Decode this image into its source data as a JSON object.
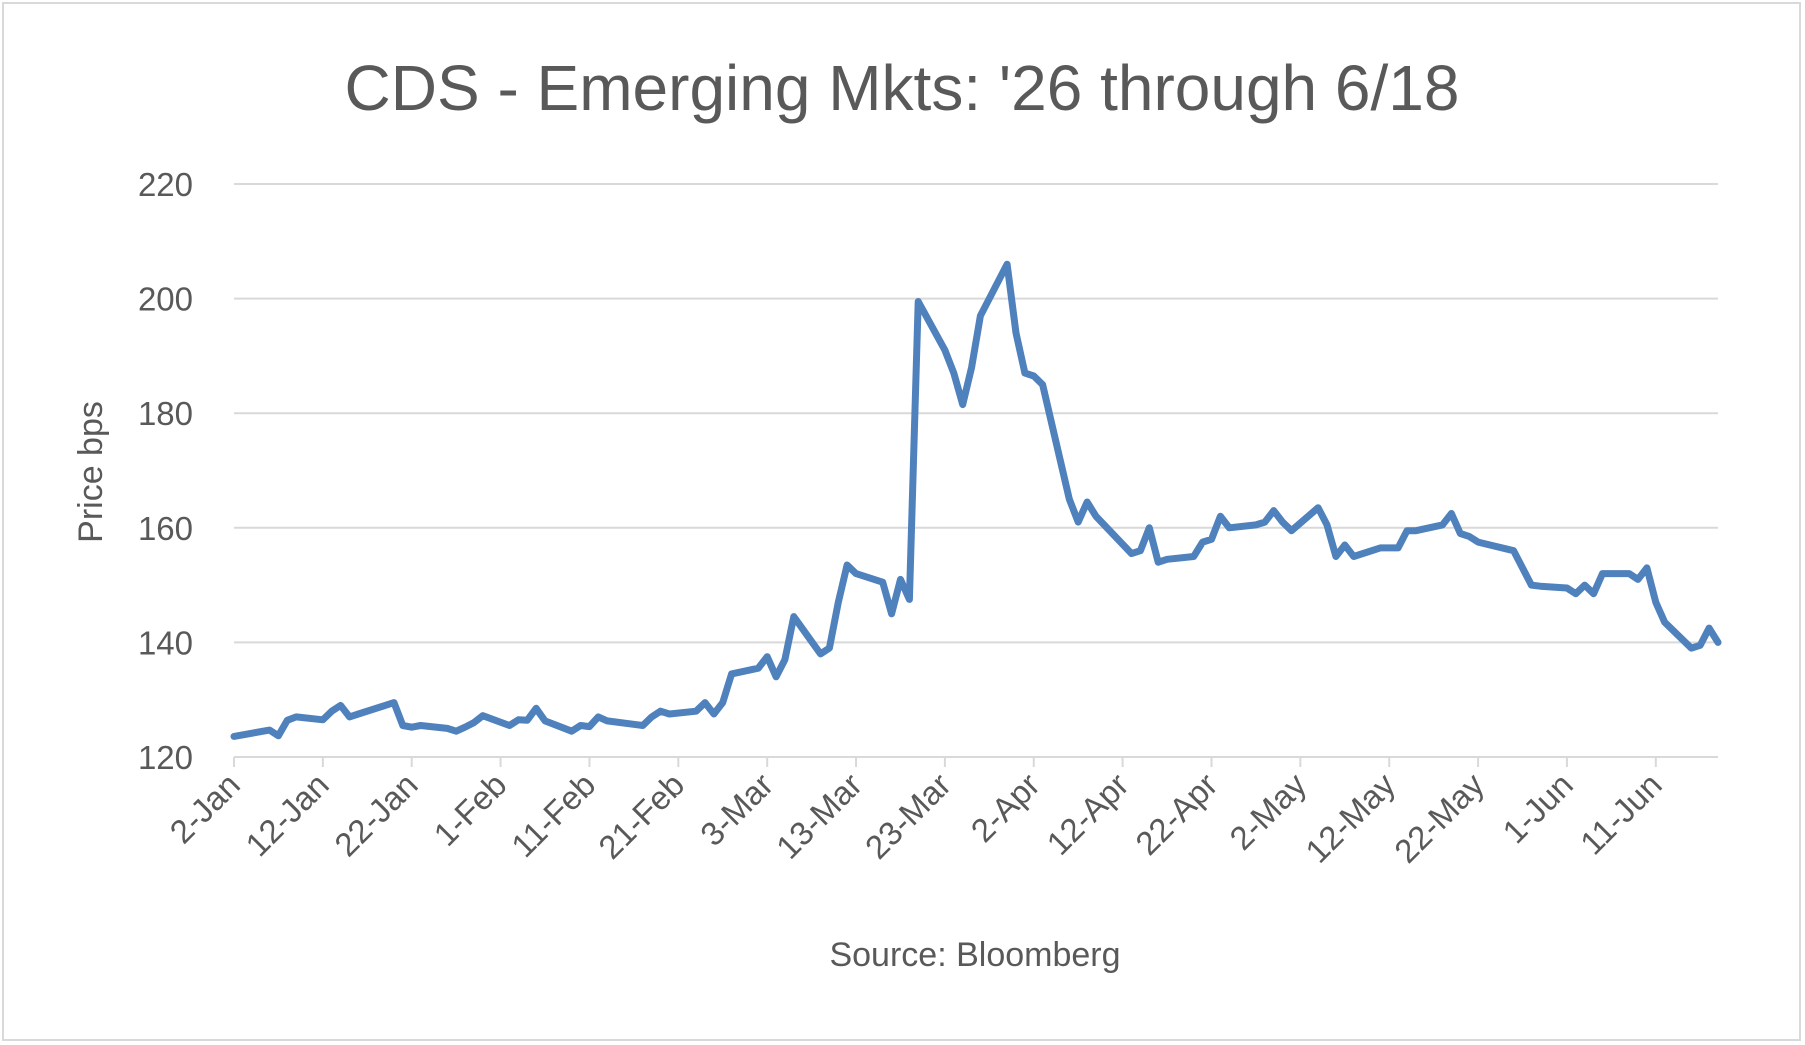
{
  "chart_data": {
    "type": "line",
    "title": "CDS - Emerging Mkts: '26 through 6/18",
    "xlabel": "Source: Bloomberg",
    "ylabel": "Price bps",
    "ylim": [
      120,
      220
    ],
    "yticks": [
      "120",
      "140",
      "160",
      "180",
      "200",
      "220"
    ],
    "xlim": [
      "2-Jan",
      "18-Jun"
    ],
    "xticks": [
      "2-Jan",
      "12-Jan",
      "22-Jan",
      "1-Feb",
      "11-Feb",
      "21-Feb",
      "3-Mar",
      "13-Mar",
      "23-Mar",
      "2-Apr",
      "12-Apr",
      "22-Apr",
      "2-May",
      "12-May",
      "22-May",
      "1-Jun",
      "11-Jun"
    ],
    "grid": true,
    "legend": "none",
    "colors": {
      "series": "#4f81bd",
      "grid": "#d9d9d9",
      "text": "#595959"
    },
    "series": [
      {
        "x": [
          "2-Jan",
          "6-Jan",
          "7-Jan",
          "8-Jan",
          "9-Jan",
          "12-Jan",
          "13-Jan",
          "14-Jan",
          "15-Jan",
          "16-Jan",
          "20-Jan",
          "21-Jan",
          "22-Jan",
          "23-Jan",
          "26-Jan",
          "27-Jan",
          "28-Jan",
          "29-Jan",
          "30-Jan",
          "2-Feb",
          "3-Feb",
          "4-Feb",
          "5-Feb",
          "6-Feb",
          "9-Feb",
          "10-Feb",
          "11-Feb",
          "12-Feb",
          "13-Feb",
          "17-Feb",
          "18-Feb",
          "19-Feb",
          "20-Feb",
          "23-Feb",
          "24-Feb",
          "25-Feb",
          "26-Feb",
          "27-Feb",
          "2-Mar",
          "3-Mar",
          "4-Mar",
          "5-Mar",
          "6-Mar",
          "9-Mar",
          "10-Mar",
          "11-Mar",
          "12-Mar",
          "13-Mar",
          "16-Mar",
          "17-Mar",
          "18-Mar",
          "19-Mar",
          "20-Mar",
          "23-Mar",
          "24-Mar",
          "25-Mar",
          "26-Mar",
          "27-Mar",
          "30-Mar",
          "31-Mar",
          "1-Apr",
          "2-Apr",
          "3-Apr",
          "6-Apr",
          "7-Apr",
          "8-Apr",
          "9-Apr",
          "13-Apr",
          "14-Apr",
          "15-Apr",
          "16-Apr",
          "17-Apr",
          "20-Apr",
          "21-Apr",
          "22-Apr",
          "23-Apr",
          "24-Apr",
          "27-Apr",
          "28-Apr",
          "29-Apr",
          "30-Apr",
          "1-May",
          "4-May",
          "5-May",
          "6-May",
          "7-May",
          "8-May",
          "11-May",
          "12-May",
          "13-May",
          "14-May",
          "15-May",
          "18-May",
          "19-May",
          "20-May",
          "21-May",
          "22-May",
          "26-May",
          "27-May",
          "28-May",
          "29-May",
          "1-Jun",
          "2-Jun",
          "3-Jun",
          "4-Jun",
          "5-Jun",
          "8-Jun",
          "9-Jun",
          "10-Jun",
          "11-Jun",
          "12-Jun",
          "15-Jun",
          "16-Jun",
          "17-Jun",
          "18-Jun"
        ],
        "y": [
          123.6,
          124.7,
          123.7,
          126.4,
          127.0,
          126.5,
          128.0,
          129.0,
          127.0,
          127.5,
          129.5,
          125.5,
          125.2,
          125.5,
          125.0,
          124.5,
          125.2,
          126.0,
          127.2,
          125.5,
          126.5,
          126.4,
          128.5,
          126.3,
          124.5,
          125.5,
          125.3,
          127.0,
          126.3,
          125.5,
          127.0,
          128.0,
          127.5,
          128.0,
          129.5,
          127.5,
          129.5,
          134.5,
          135.5,
          137.5,
          134.0,
          137.0,
          144.5,
          138.0,
          139.0,
          147.0,
          153.5,
          152.0,
          150.5,
          145.0,
          151.0,
          147.5,
          199.5,
          191.0,
          187.0,
          181.5,
          188.0,
          197.0,
          206.0,
          194.0,
          187.0,
          186.5,
          185.0,
          165.0,
          161.0,
          164.5,
          162.0,
          155.5,
          156.0,
          160.0,
          154.0,
          154.5,
          155.0,
          157.5,
          158.0,
          162.0,
          160.0,
          160.5,
          161.0,
          163.0,
          161.0,
          159.5,
          163.5,
          160.5,
          155.0,
          157.0,
          155.0,
          156.5,
          156.5,
          156.5,
          159.5,
          159.5,
          160.5,
          162.5,
          159.0,
          158.5,
          157.5,
          156.0,
          153.0,
          150.0,
          149.8,
          149.5,
          148.5,
          150.0,
          148.5,
          152.0,
          152.0,
          151.0,
          153.0,
          147.0,
          143.5,
          139.0,
          139.5,
          142.5,
          140.0
        ]
      }
    ]
  }
}
